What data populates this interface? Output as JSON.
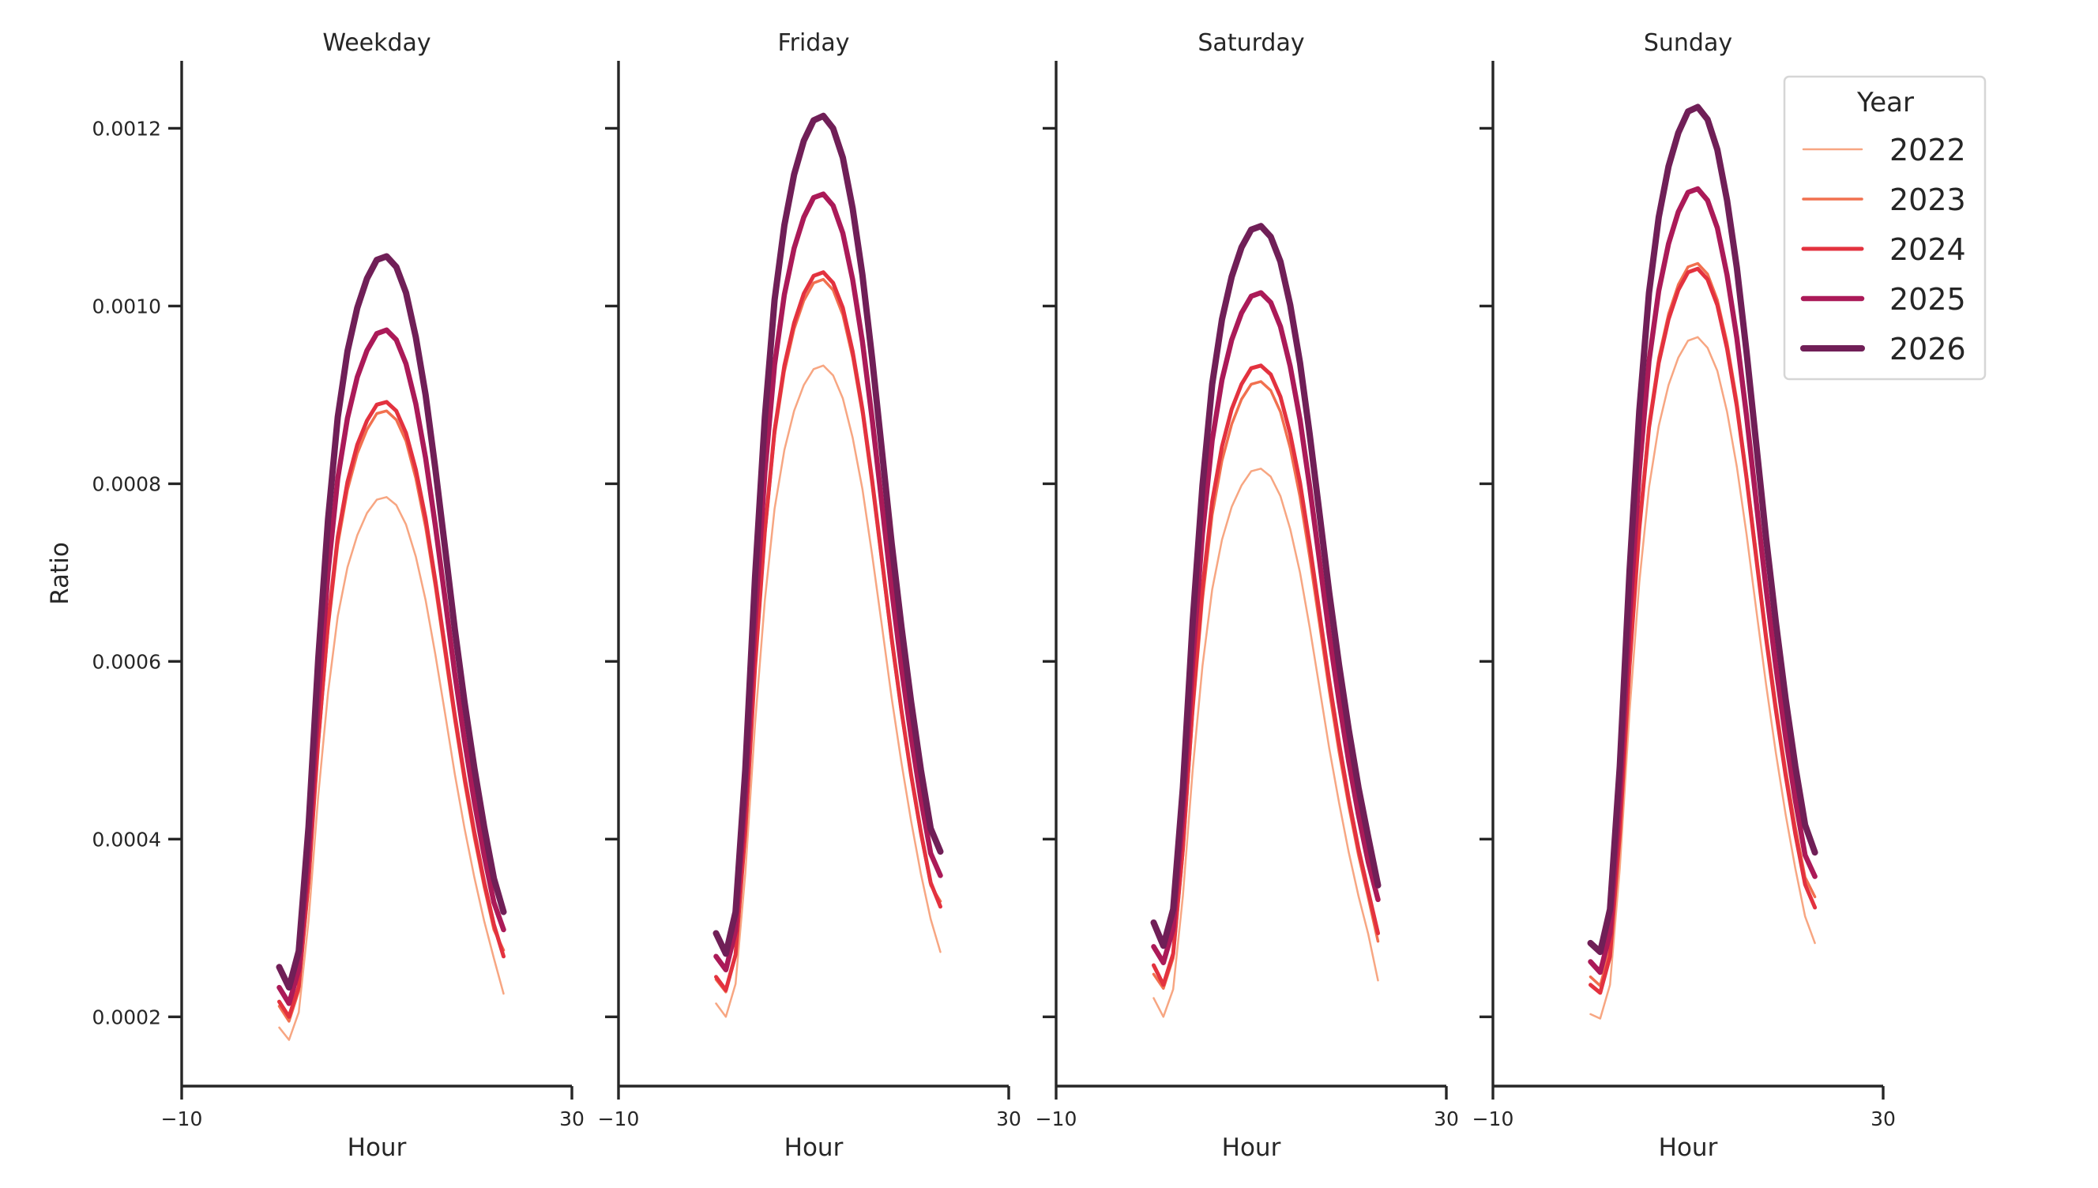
{
  "chart_data": [
    {
      "type": "line",
      "title": "Weekday",
      "xlabel": "Hour",
      "ylabel": "Ratio",
      "xlim": [
        -10,
        30
      ],
      "ylim": [
        0.000122,
        0.001276
      ],
      "xticks": [
        "−10",
        "30"
      ],
      "yticks": [
        "0.0002",
        "0.0004",
        "0.0006",
        "0.0008",
        "0.0010",
        "0.0012"
      ],
      "x": [
        0,
        1,
        2,
        3,
        4,
        5,
        6,
        7,
        8,
        9,
        10,
        11,
        12,
        13,
        14,
        15,
        16,
        17,
        18,
        19,
        20,
        21,
        22,
        23
      ],
      "series": [
        {
          "name": "2022",
          "values": [
            0.000188,
            0.000174,
            0.000205,
            0.000308,
            0.000449,
            0.000565,
            0.000651,
            0.000706,
            0.000742,
            0.000767,
            0.000782,
            0.000785,
            0.000776,
            0.000754,
            0.000718,
            0.000669,
            0.000608,
            0.000541,
            0.000473,
            0.000412,
            0.000357,
            0.000308,
            0.000266,
            0.000226
          ]
        },
        {
          "name": "2023",
          "values": [
            0.000212,
            0.000195,
            0.000229,
            0.000346,
            0.000504,
            0.000635,
            0.000731,
            0.000793,
            0.000834,
            0.000861,
            0.000879,
            0.000882,
            0.000872,
            0.000848,
            0.000806,
            0.000751,
            0.000683,
            0.000607,
            0.000532,
            0.000463,
            0.000401,
            0.000346,
            0.000298,
            0.000275
          ]
        },
        {
          "name": "2024",
          "values": [
            0.000217,
            0.0002,
            0.000234,
            0.000352,
            0.000511,
            0.000643,
            0.00074,
            0.000802,
            0.000844,
            0.000871,
            0.000889,
            0.000892,
            0.000882,
            0.000857,
            0.000816,
            0.000761,
            0.000691,
            0.000615,
            0.000539,
            0.00047,
            0.000408,
            0.000352,
            0.000304,
            0.000268
          ]
        },
        {
          "name": "2025",
          "values": [
            0.000233,
            0.000215,
            0.000253,
            0.000382,
            0.000556,
            0.0007,
            0.000806,
            0.000874,
            0.00092,
            0.00095,
            0.000969,
            0.000973,
            0.000962,
            0.000935,
            0.00089,
            0.000829,
            0.000753,
            0.00067,
            0.000586,
            0.000511,
            0.000442,
            0.000382,
            0.000329,
            0.000298
          ]
        },
        {
          "name": "2026",
          "values": [
            0.000256,
            0.000233,
            0.000274,
            0.000414,
            0.000603,
            0.00076,
            0.000875,
            0.000949,
            0.000998,
            0.001031,
            0.001052,
            0.001056,
            0.001044,
            0.001015,
            0.000965,
            0.0009,
            0.000817,
            0.000727,
            0.000636,
            0.000554,
            0.00048,
            0.000414,
            0.000356,
            0.000318
          ]
        }
      ]
    },
    {
      "type": "line",
      "title": "Friday",
      "xlabel": "Hour",
      "xlim": [
        -10,
        30
      ],
      "ylim": [
        0.000122,
        0.001276
      ],
      "xticks": [
        "−10",
        "30"
      ],
      "x": [
        0,
        1,
        2,
        3,
        4,
        5,
        6,
        7,
        8,
        9,
        10,
        11,
        12,
        13,
        14,
        15,
        16,
        17,
        18,
        19,
        20,
        21,
        22,
        23
      ],
      "series": [
        {
          "name": "2022",
          "values": [
            0.000215,
            0.0002,
            0.000237,
            0.000361,
            0.00053,
            0.000669,
            0.000772,
            0.000838,
            0.000882,
            0.000911,
            0.000929,
            0.000933,
            0.000922,
            0.000896,
            0.000852,
            0.000794,
            0.00072,
            0.00064,
            0.000559,
            0.000486,
            0.00042,
            0.000361,
            0.00031,
            0.000273
          ]
        },
        {
          "name": "2023",
          "values": [
            0.000242,
            0.000228,
            0.000268,
            0.000404,
            0.000589,
            0.000741,
            0.000854,
            0.000926,
            0.000974,
            0.001006,
            0.001026,
            0.00103,
            0.001018,
            0.00099,
            0.000942,
            0.000878,
            0.000797,
            0.000709,
            0.000621,
            0.000541,
            0.000469,
            0.000404,
            0.000348,
            0.00033
          ]
        },
        {
          "name": "2024",
          "values": [
            0.000245,
            0.00023,
            0.00027,
            0.000408,
            0.000594,
            0.000747,
            0.00086,
            0.000933,
            0.000981,
            0.001014,
            0.001034,
            0.001038,
            0.001026,
            0.000998,
            0.000949,
            0.000884,
            0.000804,
            0.000715,
            0.000626,
            0.000545,
            0.000472,
            0.000408,
            0.000351,
            0.000324
          ]
        },
        {
          "name": "2025",
          "values": [
            0.000268,
            0.000253,
            0.000297,
            0.000445,
            0.000646,
            0.000812,
            0.000934,
            0.001013,
            0.001065,
            0.0011,
            0.001122,
            0.001126,
            0.001113,
            0.001082,
            0.00103,
            0.00096,
            0.000873,
            0.000777,
            0.000681,
            0.000593,
            0.000515,
            0.000445,
            0.000384,
            0.000359
          ]
        },
        {
          "name": "2026",
          "values": [
            0.000294,
            0.000271,
            0.000318,
            0.000478,
            0.000695,
            0.000875,
            0.001007,
            0.001091,
            0.001148,
            0.001186,
            0.001209,
            0.001214,
            0.0012,
            0.001167,
            0.00111,
            0.001035,
            0.000941,
            0.000837,
            0.000733,
            0.000639,
            0.000554,
            0.000478,
            0.000412,
            0.000386
          ]
        }
      ]
    },
    {
      "type": "line",
      "title": "Saturday",
      "xlabel": "Hour",
      "xlim": [
        -10,
        30
      ],
      "ylim": [
        0.000122,
        0.001276
      ],
      "xticks": [
        "−10",
        "30"
      ],
      "x": [
        0,
        1,
        2,
        3,
        4,
        5,
        6,
        7,
        8,
        9,
        10,
        11,
        12,
        13,
        14,
        15,
        16,
        17,
        18,
        19,
        20,
        21,
        22,
        23
      ],
      "series": [
        {
          "name": "2022",
          "values": [
            0.000221,
            0.0002,
            0.000231,
            0.000336,
            0.000478,
            0.000595,
            0.000681,
            0.000737,
            0.000774,
            0.000798,
            0.000814,
            0.000817,
            0.000808,
            0.000786,
            0.000749,
            0.0007,
            0.000638,
            0.00057,
            0.000502,
            0.000441,
            0.000385,
            0.000336,
            0.000293,
            0.000241
          ]
        },
        {
          "name": "2023",
          "values": [
            0.000248,
            0.000232,
            0.000266,
            0.000382,
            0.000539,
            0.000669,
            0.000765,
            0.000826,
            0.000867,
            0.000895,
            0.000912,
            0.000915,
            0.000905,
            0.000881,
            0.00084,
            0.000785,
            0.000717,
            0.000642,
            0.000567,
            0.000498,
            0.000437,
            0.000382,
            0.000334,
            0.000285
          ]
        },
        {
          "name": "2024",
          "values": [
            0.000258,
            0.000236,
            0.000271,
            0.000389,
            0.00055,
            0.000682,
            0.00078,
            0.000842,
            0.000884,
            0.000912,
            0.00093,
            0.000933,
            0.000923,
            0.000898,
            0.000856,
            0.000801,
            0.000731,
            0.000654,
            0.000578,
            0.000508,
            0.000445,
            0.000389,
            0.000341,
            0.000294
          ]
        },
        {
          "name": "2025",
          "values": [
            0.000279,
            0.000261,
            0.000299,
            0.000427,
            0.0006,
            0.000744,
            0.000849,
            0.000917,
            0.000962,
            0.000992,
            0.001011,
            0.001015,
            0.001004,
            0.000977,
            0.000932,
            0.000872,
            0.000796,
            0.000713,
            0.00063,
            0.000555,
            0.000487,
            0.000427,
            0.000374,
            0.000332
          ]
        },
        {
          "name": "2026",
          "values": [
            0.000306,
            0.00028,
            0.000321,
            0.000458,
            0.000645,
            0.000798,
            0.000912,
            0.000985,
            0.001033,
            0.001066,
            0.001086,
            0.00109,
            0.001078,
            0.00105,
            0.001001,
            0.000936,
            0.000855,
            0.000766,
            0.000677,
            0.000596,
            0.000523,
            0.000458,
            0.000402,
            0.000348
          ]
        }
      ]
    },
    {
      "type": "line",
      "title": "Sunday",
      "xlabel": "Hour",
      "xlim": [
        -10,
        30
      ],
      "ylim": [
        0.000122,
        0.001276
      ],
      "xticks": [
        "−10",
        "30"
      ],
      "x": [
        0,
        1,
        2,
        3,
        4,
        5,
        6,
        7,
        8,
        9,
        10,
        11,
        12,
        13,
        14,
        15,
        16,
        17,
        18,
        19,
        20,
        21,
        22,
        23
      ],
      "series": [
        {
          "name": "2022",
          "values": [
            0.000203,
            0.000198,
            0.000236,
            0.000367,
            0.000543,
            0.000689,
            0.000796,
            0.000865,
            0.000911,
            0.000942,
            0.000961,
            0.000965,
            0.000953,
            0.000927,
            0.000881,
            0.000819,
            0.000743,
            0.000658,
            0.000574,
            0.000497,
            0.000428,
            0.000367,
            0.000313,
            0.000283
          ]
        },
        {
          "name": "2023",
          "values": [
            0.000245,
            0.000235,
            0.000276,
            0.000414,
            0.000601,
            0.000755,
            0.000869,
            0.000942,
            0.000991,
            0.001024,
            0.001044,
            0.001048,
            0.001036,
            0.001007,
            0.000959,
            0.000894,
            0.000812,
            0.000723,
            0.000633,
            0.000552,
            0.000479,
            0.000414,
            0.000357,
            0.000335
          ]
        },
        {
          "name": "2024",
          "values": [
            0.000236,
            0.000227,
            0.000268,
            0.000406,
            0.000594,
            0.000749,
            0.000863,
            0.000936,
            0.000985,
            0.001018,
            0.001038,
            0.001042,
            0.00103,
            0.001001,
            0.000952,
            0.000887,
            0.000806,
            0.000716,
            0.000626,
            0.000545,
            0.000472,
            0.000406,
            0.000349,
            0.000323
          ]
        },
        {
          "name": "2025",
          "values": [
            0.000262,
            0.00025,
            0.000294,
            0.000444,
            0.000647,
            0.000814,
            0.000938,
            0.001017,
            0.00107,
            0.001106,
            0.001128,
            0.001132,
            0.001119,
            0.001088,
            0.001035,
            0.000964,
            0.000876,
            0.000779,
            0.000682,
            0.000594,
            0.000515,
            0.000444,
            0.000382,
            0.000358
          ]
        },
        {
          "name": "2026",
          "values": [
            0.000283,
            0.000273,
            0.000321,
            0.000482,
            0.000701,
            0.000882,
            0.001015,
            0.0011,
            0.001157,
            0.001195,
            0.001219,
            0.001224,
            0.00121,
            0.001176,
            0.001119,
            0.001043,
            0.000948,
            0.000844,
            0.000739,
            0.000644,
            0.000558,
            0.000482,
            0.000416,
            0.000385
          ]
        }
      ]
    }
  ],
  "legend": {
    "title": "Year",
    "placement": "top-right",
    "entries": [
      "2022",
      "2023",
      "2024",
      "2025",
      "2026"
    ]
  },
  "series_colors": {
    "2022": "#f7a682",
    "2023": "#f1704f",
    "2024": "#e3323f",
    "2025": "#ab1a58",
    "2026": "#701f57"
  },
  "series_widths": {
    "2022": 2.5,
    "2023": 3.5,
    "2024": 5,
    "2025": 6.5,
    "2026": 8
  }
}
